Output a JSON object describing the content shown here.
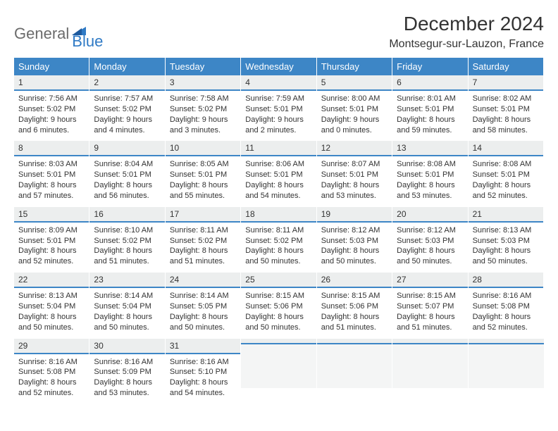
{
  "logo": {
    "word1": "General",
    "word2": "Blue",
    "triangle_color": "#2f7ac5"
  },
  "title": "December 2024",
  "location": "Montsegur-sur-Lauzon, France",
  "colors": {
    "header_bg": "#3d86c6",
    "header_fg": "#ffffff",
    "daynum_bg": "#eceeee",
    "daynum_border": "#3d86c6",
    "empty_bg": "#f4f5f5",
    "text": "#333333"
  },
  "day_names": [
    "Sunday",
    "Monday",
    "Tuesday",
    "Wednesday",
    "Thursday",
    "Friday",
    "Saturday"
  ],
  "weeks": [
    [
      {
        "n": "1",
        "sunrise": "Sunrise: 7:56 AM",
        "sunset": "Sunset: 5:02 PM",
        "day1": "Daylight: 9 hours",
        "day2": "and 6 minutes."
      },
      {
        "n": "2",
        "sunrise": "Sunrise: 7:57 AM",
        "sunset": "Sunset: 5:02 PM",
        "day1": "Daylight: 9 hours",
        "day2": "and 4 minutes."
      },
      {
        "n": "3",
        "sunrise": "Sunrise: 7:58 AM",
        "sunset": "Sunset: 5:02 PM",
        "day1": "Daylight: 9 hours",
        "day2": "and 3 minutes."
      },
      {
        "n": "4",
        "sunrise": "Sunrise: 7:59 AM",
        "sunset": "Sunset: 5:01 PM",
        "day1": "Daylight: 9 hours",
        "day2": "and 2 minutes."
      },
      {
        "n": "5",
        "sunrise": "Sunrise: 8:00 AM",
        "sunset": "Sunset: 5:01 PM",
        "day1": "Daylight: 9 hours",
        "day2": "and 0 minutes."
      },
      {
        "n": "6",
        "sunrise": "Sunrise: 8:01 AM",
        "sunset": "Sunset: 5:01 PM",
        "day1": "Daylight: 8 hours",
        "day2": "and 59 minutes."
      },
      {
        "n": "7",
        "sunrise": "Sunrise: 8:02 AM",
        "sunset": "Sunset: 5:01 PM",
        "day1": "Daylight: 8 hours",
        "day2": "and 58 minutes."
      }
    ],
    [
      {
        "n": "8",
        "sunrise": "Sunrise: 8:03 AM",
        "sunset": "Sunset: 5:01 PM",
        "day1": "Daylight: 8 hours",
        "day2": "and 57 minutes."
      },
      {
        "n": "9",
        "sunrise": "Sunrise: 8:04 AM",
        "sunset": "Sunset: 5:01 PM",
        "day1": "Daylight: 8 hours",
        "day2": "and 56 minutes."
      },
      {
        "n": "10",
        "sunrise": "Sunrise: 8:05 AM",
        "sunset": "Sunset: 5:01 PM",
        "day1": "Daylight: 8 hours",
        "day2": "and 55 minutes."
      },
      {
        "n": "11",
        "sunrise": "Sunrise: 8:06 AM",
        "sunset": "Sunset: 5:01 PM",
        "day1": "Daylight: 8 hours",
        "day2": "and 54 minutes."
      },
      {
        "n": "12",
        "sunrise": "Sunrise: 8:07 AM",
        "sunset": "Sunset: 5:01 PM",
        "day1": "Daylight: 8 hours",
        "day2": "and 53 minutes."
      },
      {
        "n": "13",
        "sunrise": "Sunrise: 8:08 AM",
        "sunset": "Sunset: 5:01 PM",
        "day1": "Daylight: 8 hours",
        "day2": "and 53 minutes."
      },
      {
        "n": "14",
        "sunrise": "Sunrise: 8:08 AM",
        "sunset": "Sunset: 5:01 PM",
        "day1": "Daylight: 8 hours",
        "day2": "and 52 minutes."
      }
    ],
    [
      {
        "n": "15",
        "sunrise": "Sunrise: 8:09 AM",
        "sunset": "Sunset: 5:01 PM",
        "day1": "Daylight: 8 hours",
        "day2": "and 52 minutes."
      },
      {
        "n": "16",
        "sunrise": "Sunrise: 8:10 AM",
        "sunset": "Sunset: 5:02 PM",
        "day1": "Daylight: 8 hours",
        "day2": "and 51 minutes."
      },
      {
        "n": "17",
        "sunrise": "Sunrise: 8:11 AM",
        "sunset": "Sunset: 5:02 PM",
        "day1": "Daylight: 8 hours",
        "day2": "and 51 minutes."
      },
      {
        "n": "18",
        "sunrise": "Sunrise: 8:11 AM",
        "sunset": "Sunset: 5:02 PM",
        "day1": "Daylight: 8 hours",
        "day2": "and 50 minutes."
      },
      {
        "n": "19",
        "sunrise": "Sunrise: 8:12 AM",
        "sunset": "Sunset: 5:03 PM",
        "day1": "Daylight: 8 hours",
        "day2": "and 50 minutes."
      },
      {
        "n": "20",
        "sunrise": "Sunrise: 8:12 AM",
        "sunset": "Sunset: 5:03 PM",
        "day1": "Daylight: 8 hours",
        "day2": "and 50 minutes."
      },
      {
        "n": "21",
        "sunrise": "Sunrise: 8:13 AM",
        "sunset": "Sunset: 5:03 PM",
        "day1": "Daylight: 8 hours",
        "day2": "and 50 minutes."
      }
    ],
    [
      {
        "n": "22",
        "sunrise": "Sunrise: 8:13 AM",
        "sunset": "Sunset: 5:04 PM",
        "day1": "Daylight: 8 hours",
        "day2": "and 50 minutes."
      },
      {
        "n": "23",
        "sunrise": "Sunrise: 8:14 AM",
        "sunset": "Sunset: 5:04 PM",
        "day1": "Daylight: 8 hours",
        "day2": "and 50 minutes."
      },
      {
        "n": "24",
        "sunrise": "Sunrise: 8:14 AM",
        "sunset": "Sunset: 5:05 PM",
        "day1": "Daylight: 8 hours",
        "day2": "and 50 minutes."
      },
      {
        "n": "25",
        "sunrise": "Sunrise: 8:15 AM",
        "sunset": "Sunset: 5:06 PM",
        "day1": "Daylight: 8 hours",
        "day2": "and 50 minutes."
      },
      {
        "n": "26",
        "sunrise": "Sunrise: 8:15 AM",
        "sunset": "Sunset: 5:06 PM",
        "day1": "Daylight: 8 hours",
        "day2": "and 51 minutes."
      },
      {
        "n": "27",
        "sunrise": "Sunrise: 8:15 AM",
        "sunset": "Sunset: 5:07 PM",
        "day1": "Daylight: 8 hours",
        "day2": "and 51 minutes."
      },
      {
        "n": "28",
        "sunrise": "Sunrise: 8:16 AM",
        "sunset": "Sunset: 5:08 PM",
        "day1": "Daylight: 8 hours",
        "day2": "and 52 minutes."
      }
    ],
    [
      {
        "n": "29",
        "sunrise": "Sunrise: 8:16 AM",
        "sunset": "Sunset: 5:08 PM",
        "day1": "Daylight: 8 hours",
        "day2": "and 52 minutes."
      },
      {
        "n": "30",
        "sunrise": "Sunrise: 8:16 AM",
        "sunset": "Sunset: 5:09 PM",
        "day1": "Daylight: 8 hours",
        "day2": "and 53 minutes."
      },
      {
        "n": "31",
        "sunrise": "Sunrise: 8:16 AM",
        "sunset": "Sunset: 5:10 PM",
        "day1": "Daylight: 8 hours",
        "day2": "and 54 minutes."
      },
      null,
      null,
      null,
      null
    ]
  ]
}
